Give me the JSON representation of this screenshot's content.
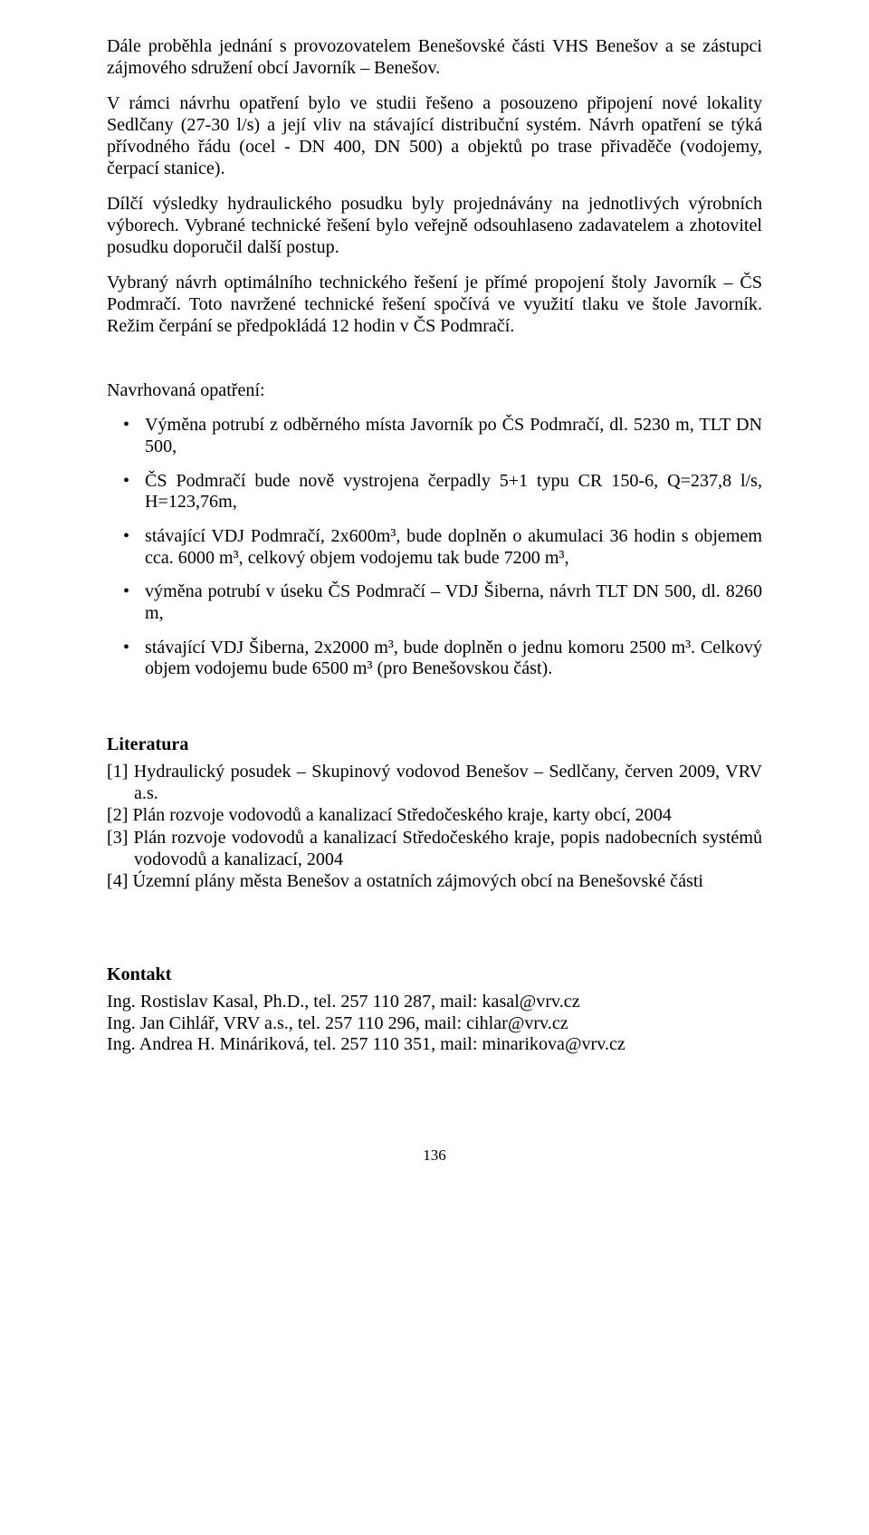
{
  "paragraphs": {
    "p1": "Dále proběhla jednání s provozovatelem Benešovské části VHS Benešov a se zástupci zájmového sdružení obcí Javorník – Benešov.",
    "p2": "V rámci návrhu opatření bylo ve studii řešeno a posouzeno připojení nové lokality Sedlčany (27-30 l/s) a její vliv na stávající distribuční systém. Návrh opatření se týká přívodného řádu (ocel - DN 400, DN 500) a objektů po trase přivaděče (vodojemy, čerpací stanice).",
    "p3": "Dílčí výsledky hydraulického posudku byly projednávány na jednotlivých výrobních výborech. Vybrané technické řešení bylo veřejně odsouhlaseno zadavatelem a zhotovitel posudku doporučil další postup.",
    "p4": "Vybraný návrh optimálního technického řešení je přímé propojení štoly Javorník – ČS Podmračí. Toto navržené technické řešení spočívá ve využití tlaku ve štole Javorník. Režim čerpání se předpokládá 12 hodin v ČS Podmračí."
  },
  "proposed_label": "Navrhovaná opatření:",
  "bullets": {
    "b1": "Výměna potrubí z odběrného místa Javorník po ČS Podmračí, dl. 5230 m, TLT DN 500,",
    "b2": "ČS Podmračí bude nově vystrojena čerpadly 5+1 typu CR 150-6, Q=237,8 l/s, H=123,76m,",
    "b3": "stávající VDJ Podmračí, 2x600m³, bude doplněn o akumulaci 36 hodin s objemem cca. 6000 m³, celkový objem vodojemu tak bude 7200 m³,",
    "b4": "výměna potrubí v úseku ČS Podmračí – VDJ Šiberna, návrh TLT DN 500, dl. 8260 m,",
    "b5": "stávající VDJ Šiberna, 2x2000 m³, bude doplněn o jednu komoru 2500 m³. Celkový objem vodojemu bude 6500 m³ (pro Benešovskou část)."
  },
  "literature": {
    "heading": "Literatura",
    "r1": "[1] Hydraulický posudek – Skupinový vodovod Benešov – Sedlčany, červen 2009, VRV a.s.",
    "r2": "[2] Plán rozvoje vodovodů a kanalizací Středočeského kraje, karty obcí, 2004",
    "r3": "[3] Plán rozvoje vodovodů a kanalizací Středočeského kraje, popis nadobecních systémů vodovodů a kanalizací, 2004",
    "r4": "[4] Územní plány města Benešov a ostatních zájmových obcí na Benešovské části"
  },
  "contact": {
    "heading": "Kontakt",
    "c1": "Ing. Rostislav Kasal, Ph.D., tel. 257 110 287, mail: kasal@vrv.cz",
    "c2": "Ing. Jan Cihlář, VRV a.s., tel. 257 110 296, mail: cihlar@vrv.cz",
    "c3": "Ing. Andrea H. Mináriková, tel. 257 110 351, mail: minarikova@vrv.cz"
  },
  "page_number": "136"
}
